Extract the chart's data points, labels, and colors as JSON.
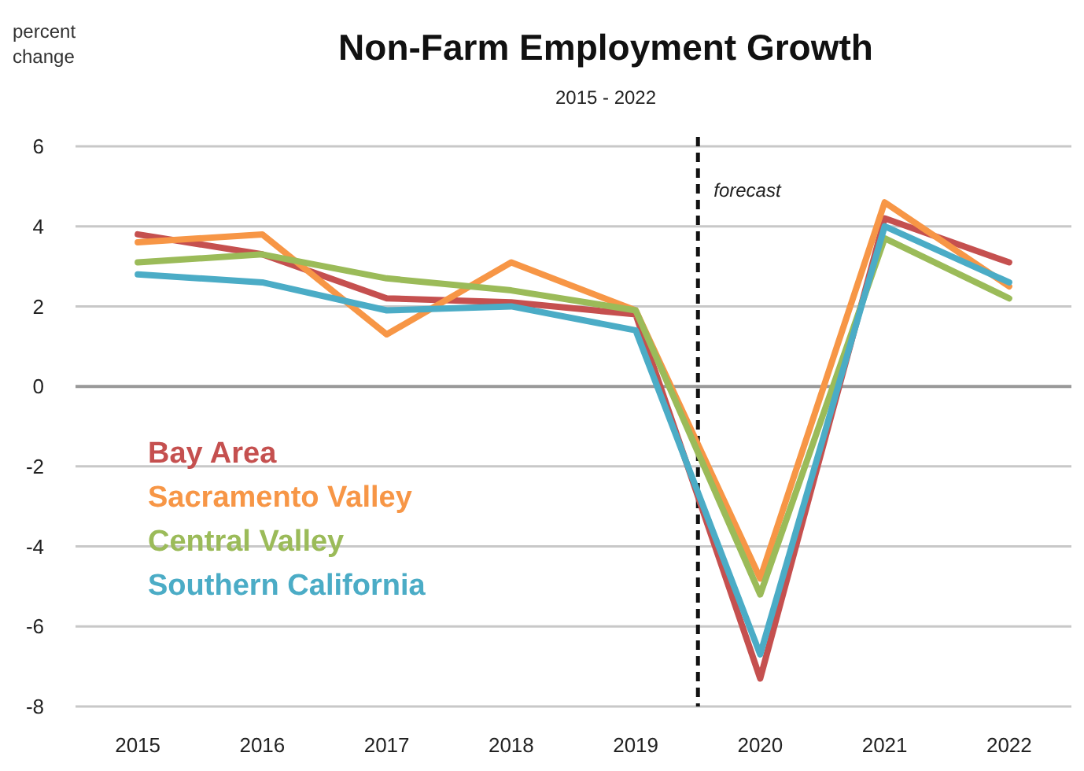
{
  "chart_data": {
    "type": "line",
    "title": "Non-Farm Employment Growth",
    "subtitle": "2015 - 2022",
    "ylabel": "percent change",
    "x": [
      2015,
      2016,
      2017,
      2018,
      2019,
      2020,
      2021,
      2022
    ],
    "xlim": [
      2014.5,
      2022.5
    ],
    "xticks": [
      2015,
      2016,
      2017,
      2018,
      2019,
      2020,
      2021,
      2022
    ],
    "ylim": [
      -8,
      6
    ],
    "yticks": [
      -8,
      -6,
      -4,
      -2,
      0,
      2,
      4,
      6
    ],
    "grid": "y",
    "legend": "left",
    "marker": "none",
    "line_style": "solid",
    "ref_lines": [
      {
        "axis": "x",
        "value": 2019.5,
        "label": "forecast",
        "color": "#111111",
        "line_style": "dashed"
      }
    ],
    "series": [
      {
        "name": "Bay Area",
        "color": "#c5504f",
        "values": [
          3.8,
          3.3,
          2.2,
          2.1,
          1.8,
          -7.3,
          4.2,
          3.1
        ]
      },
      {
        "name": "Sacramento Valley",
        "color": "#f79646",
        "values": [
          3.6,
          3.8,
          1.3,
          3.1,
          1.9,
          -4.8,
          4.6,
          2.5
        ]
      },
      {
        "name": "Central Valley",
        "color": "#9bbb59",
        "values": [
          3.1,
          3.3,
          2.7,
          2.4,
          1.9,
          -5.2,
          3.7,
          2.2
        ]
      },
      {
        "name": "Southern California",
        "color": "#4bacc6",
        "values": [
          2.8,
          2.6,
          1.9,
          2.0,
          1.4,
          -6.7,
          4.0,
          2.6
        ]
      }
    ]
  }
}
